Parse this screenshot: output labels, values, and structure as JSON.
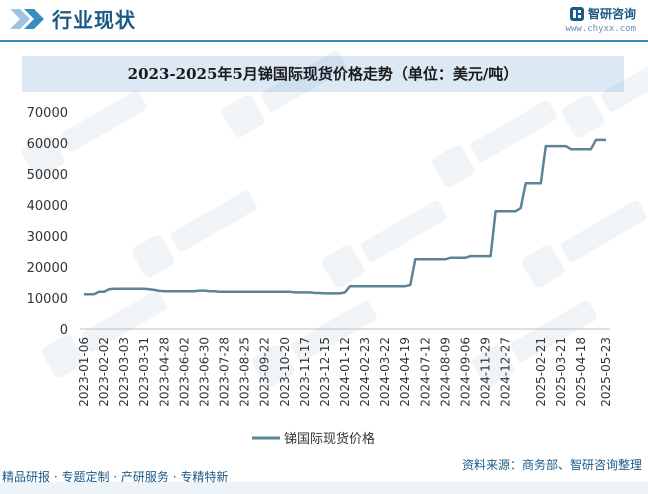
{
  "header": {
    "section_title": "行业现状",
    "brand_name": "智研咨询",
    "brand_url": "www.chyxx.com"
  },
  "chart_data": {
    "type": "line",
    "title": "2023-2025年5月锑国际现货价格走势（单位：美元/吨）",
    "xlabel": "",
    "ylabel": "",
    "ylim": [
      0,
      70000
    ],
    "yticks": [
      0,
      10000,
      20000,
      30000,
      40000,
      50000,
      60000,
      70000
    ],
    "grid": false,
    "legend": "bottom-center",
    "color": "#5b8597",
    "x_tick_labels": [
      "2023-01-06",
      "2023-02-02",
      "2023-03-03",
      "2023-03-31",
      "2023-04-28",
      "2023-06-02",
      "2023-06-30",
      "2023-07-28",
      "2023-08-25",
      "2023-09-22",
      "2023-10-20",
      "2023-11-17",
      "2023-12-15",
      "2024-01-12",
      "2024-02-23",
      "2024-03-22",
      "2024-04-19",
      "2024-07-12",
      "2024-08-09",
      "2024-09-06",
      "2024-11-29",
      "2024-12-27",
      "2025-02-21",
      "2025-03-21",
      "2025-04-18",
      "2025-05-23"
    ],
    "series": [
      {
        "name": "锑国际现货价格",
        "x": [
          "2023-01-06",
          "2023-01-13",
          "2023-01-20",
          "2023-01-27",
          "2023-02-02",
          "2023-02-09",
          "2023-02-16",
          "2023-02-23",
          "2023-03-03",
          "2023-03-10",
          "2023-03-17",
          "2023-03-24",
          "2023-03-31",
          "2023-04-07",
          "2023-04-14",
          "2023-04-21",
          "2023-04-28",
          "2023-05-12",
          "2023-05-19",
          "2023-05-26",
          "2023-06-02",
          "2023-06-09",
          "2023-06-16",
          "2023-06-23",
          "2023-06-30",
          "2023-07-07",
          "2023-07-14",
          "2023-07-21",
          "2023-07-28",
          "2023-08-04",
          "2023-08-11",
          "2023-08-18",
          "2023-08-25",
          "2023-09-01",
          "2023-09-08",
          "2023-09-15",
          "2023-09-22",
          "2023-09-29",
          "2023-10-06",
          "2023-10-13",
          "2023-10-20",
          "2023-10-27",
          "2023-11-03",
          "2023-11-10",
          "2023-11-17",
          "2023-11-24",
          "2023-12-01",
          "2023-12-08",
          "2023-12-15",
          "2023-12-22",
          "2023-12-29",
          "2024-01-05",
          "2024-01-12",
          "2024-01-19",
          "2024-01-26",
          "2024-02-02",
          "2024-02-23",
          "2024-03-01",
          "2024-03-08",
          "2024-03-15",
          "2024-03-22",
          "2024-03-29",
          "2024-04-05",
          "2024-04-12",
          "2024-04-19",
          "2024-04-26",
          "2024-05-03",
          "2024-05-10",
          "2024-07-12",
          "2024-07-19",
          "2024-07-26",
          "2024-08-02",
          "2024-08-09",
          "2024-08-16",
          "2024-08-23",
          "2024-08-30",
          "2024-09-06",
          "2024-09-13",
          "2024-09-20",
          "2024-09-27",
          "2024-11-29",
          "2024-12-06",
          "2024-12-13",
          "2024-12-20",
          "2024-12-27",
          "2025-01-03",
          "2025-01-10",
          "2025-01-17",
          "2025-01-24",
          "2025-02-07",
          "2025-02-14",
          "2025-02-21",
          "2025-02-28",
          "2025-03-07",
          "2025-03-14",
          "2025-03-21",
          "2025-03-28",
          "2025-04-04",
          "2025-04-11",
          "2025-04-18",
          "2025-04-25",
          "2025-05-02",
          "2025-05-09",
          "2025-05-16",
          "2025-05-23"
        ],
        "values": [
          11200,
          11200,
          11200,
          12000,
          12000,
          12800,
          13000,
          13000,
          13000,
          13000,
          13000,
          13000,
          13000,
          12800,
          12600,
          12300,
          12200,
          12200,
          12200,
          12200,
          12200,
          12200,
          12200,
          12400,
          12400,
          12200,
          12200,
          12000,
          12000,
          12000,
          12000,
          12000,
          12000,
          12000,
          12000,
          12000,
          12000,
          12000,
          12000,
          12000,
          12000,
          12000,
          11800,
          11800,
          11800,
          11800,
          11600,
          11600,
          11500,
          11500,
          11500,
          11500,
          11800,
          13800,
          13800,
          13800,
          13800,
          13800,
          13800,
          13800,
          13800,
          13800,
          13800,
          13800,
          13800,
          14200,
          22500,
          22500,
          22500,
          22500,
          22500,
          22500,
          22500,
          23000,
          23000,
          23000,
          23000,
          23500,
          23500,
          23500,
          23500,
          23500,
          38000,
          38000,
          38000,
          38000,
          38000,
          39000,
          47000,
          47000,
          47000,
          47000,
          59000,
          59000,
          59000,
          59000,
          59000,
          58000,
          58000,
          58000,
          58000,
          58000,
          61000,
          61000,
          61000
        ]
      }
    ]
  },
  "legend": {
    "label": "锑国际现货价格"
  },
  "footer": {
    "left_text": "精品研报 · 专题定制 · 产研服务 · 专精特新",
    "right_text": "资料来源：商务部、智研咨询整理"
  }
}
